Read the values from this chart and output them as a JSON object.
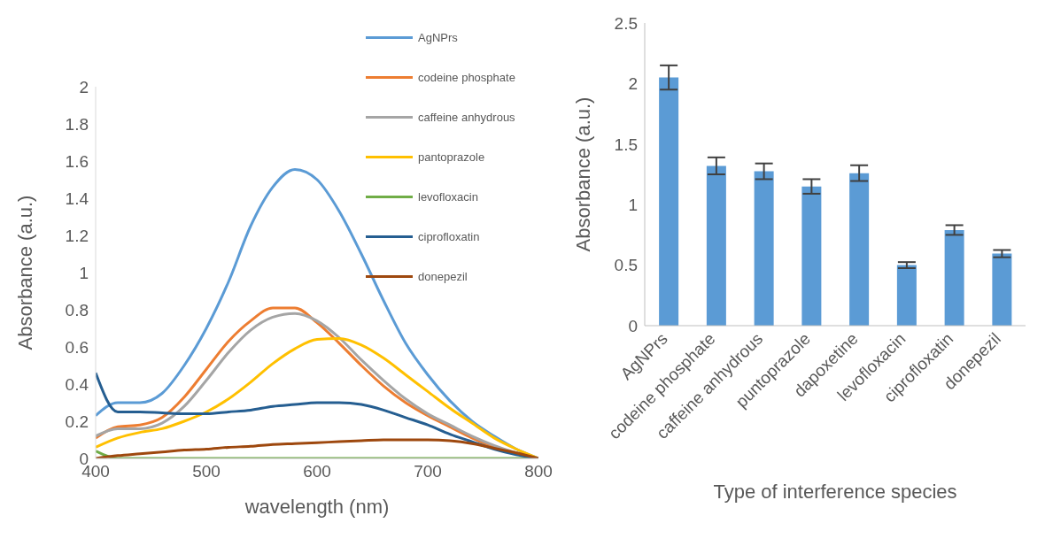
{
  "chart_data": [
    {
      "type": "line",
      "xlabel": "wavelength (nm)",
      "ylabel": "Absorbance (a.u.)",
      "x": [
        400,
        420,
        440,
        460,
        480,
        500,
        520,
        540,
        560,
        580,
        600,
        620,
        640,
        660,
        680,
        700,
        720,
        740,
        760,
        780,
        800
      ],
      "xlim": [
        400,
        800
      ],
      "xticks": [
        400,
        500,
        600,
        700,
        800
      ],
      "ylim": [
        0,
        2
      ],
      "yticks": [
        0,
        0.2,
        0.4,
        0.6,
        0.8,
        1,
        1.2,
        1.4,
        1.6,
        1.8,
        2
      ],
      "grid": false,
      "legend": "top right",
      "marker": "none",
      "line_style": "solid",
      "series": [
        {
          "name": "AgNPrs",
          "color": "#5b9bd5",
          "values": [
            0.23,
            0.3,
            0.3,
            0.35,
            0.5,
            0.7,
            0.95,
            1.25,
            1.46,
            1.555,
            1.5,
            1.33,
            1.1,
            0.85,
            0.62,
            0.45,
            0.31,
            0.2,
            0.12,
            0.05,
            0
          ]
        },
        {
          "name": "codeine phosphate",
          "color": "#ed7d31",
          "values": [
            0.11,
            0.17,
            0.18,
            0.22,
            0.33,
            0.48,
            0.63,
            0.74,
            0.81,
            0.81,
            0.73,
            0.62,
            0.5,
            0.39,
            0.3,
            0.23,
            0.17,
            0.11,
            0.06,
            0.03,
            0
          ]
        },
        {
          "name": "caffeine anhydrous",
          "color": "#a5a5a5",
          "values": [
            0.12,
            0.16,
            0.16,
            0.19,
            0.28,
            0.42,
            0.57,
            0.69,
            0.76,
            0.78,
            0.74,
            0.65,
            0.53,
            0.42,
            0.32,
            0.24,
            0.18,
            0.12,
            0.07,
            0.03,
            0
          ]
        },
        {
          "name": "pantoprazole",
          "color": "#ffc000",
          "values": [
            0.06,
            0.11,
            0.14,
            0.16,
            0.2,
            0.25,
            0.32,
            0.41,
            0.51,
            0.59,
            0.64,
            0.645,
            0.61,
            0.54,
            0.45,
            0.36,
            0.27,
            0.19,
            0.11,
            0.05,
            0
          ]
        },
        {
          "name": "levofloxacin",
          "color": "#70ad47",
          "values": [
            0.04,
            0,
            0,
            0,
            0,
            0,
            0,
            0,
            0,
            0,
            0,
            0,
            0,
            0,
            0,
            0,
            0,
            0,
            0,
            0,
            0
          ]
        },
        {
          "name": "ciprofloxatin",
          "color": "#255e91",
          "values": [
            0.46,
            0.25,
            0.25,
            0.245,
            0.24,
            0.24,
            0.25,
            0.26,
            0.28,
            0.29,
            0.3,
            0.3,
            0.29,
            0.26,
            0.22,
            0.18,
            0.13,
            0.09,
            0.05,
            0.02,
            0
          ]
        },
        {
          "name": "donepezil",
          "color": "#9e480e",
          "values": [
            0,
            0.015,
            0.025,
            0.035,
            0.045,
            0.05,
            0.06,
            0.065,
            0.075,
            0.08,
            0.085,
            0.09,
            0.095,
            0.1,
            0.1,
            0.1,
            0.095,
            0.08,
            0.055,
            0.03,
            0
          ]
        }
      ]
    },
    {
      "type": "bar",
      "xlabel": "Type of interference species",
      "ylabel": "Absorbance (a.u.)",
      "categories": [
        "AgNPrs",
        "codeine phosphate",
        "caffeine anhydrous",
        "puntoprazole",
        "dapoxetine",
        "levofloxacin",
        "ciprofloxatin",
        "donepezil"
      ],
      "values": [
        2.05,
        1.32,
        1.275,
        1.15,
        1.26,
        0.5,
        0.79,
        0.595
      ],
      "errors": [
        0.1,
        0.07,
        0.065,
        0.06,
        0.065,
        0.025,
        0.04,
        0.03
      ],
      "color": "#5b9bd5",
      "ylim": [
        0,
        2.5
      ],
      "yticks": [
        0,
        0.5,
        1,
        1.5,
        2,
        2.5
      ],
      "grid": false
    }
  ]
}
